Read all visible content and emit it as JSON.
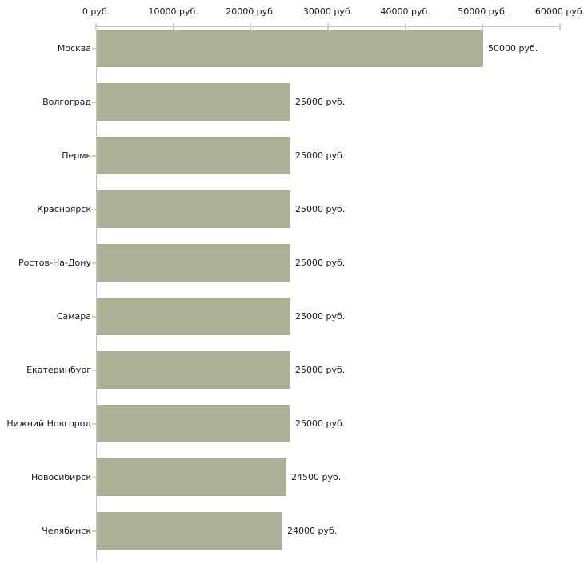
{
  "chart_data": {
    "type": "bar",
    "orientation": "horizontal",
    "title": "",
    "categories": [
      "Москва",
      "Волгоград",
      "Пермь",
      "Красноярск",
      "Ростов-На-Дону",
      "Самара",
      "Екатеринбург",
      "Нижний Новгород",
      "Новосибирск",
      "Челябинск"
    ],
    "values": [
      50000,
      25000,
      25000,
      25000,
      25000,
      25000,
      25000,
      25000,
      24500,
      24000
    ],
    "bar_value_labels": [
      "50000 руб.",
      "25000 руб.",
      "25000 руб.",
      "25000 руб.",
      "25000 руб.",
      "25000 руб.",
      "25000 руб.",
      "25000 руб.",
      "24500 руб.",
      "24000 руб."
    ],
    "x_axis": {
      "position": "top",
      "range": [
        0,
        60000
      ],
      "ticks": [
        0,
        10000,
        20000,
        30000,
        40000,
        50000,
        60000
      ],
      "tick_labels": [
        "0 руб.",
        "10000 руб.",
        "20000 руб.",
        "30000 руб.",
        "40000 руб.",
        "50000 руб.",
        "60000 руб."
      ],
      "unit": "руб."
    },
    "grid": false,
    "legend": "none",
    "colors": {
      "bar": "#aab194",
      "axis_line": "#c3c3c3",
      "tick_mark": "#d6d6ad",
      "text": "#1a1a1a",
      "background": "#ffffff"
    }
  }
}
